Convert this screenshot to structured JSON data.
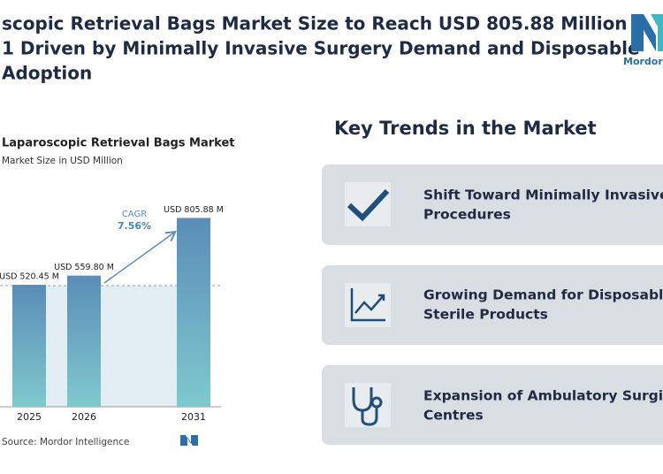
{
  "header": {
    "title_lines": [
      "scopic Retrieval Bags Market Size to Reach USD 805.88 Million",
      "1 Driven by Minimally Invasive Surgery Demand and Disposable",
      "Adoption"
    ],
    "logo": "Mordor In"
  },
  "chart_data": {
    "type": "bar",
    "title": "Laparoscopic Retrieval Bags Market",
    "subtitle": "Market Size in USD Million",
    "categories": [
      "2025",
      "2026",
      "2031"
    ],
    "values": [
      520.45,
      559.8,
      805.88
    ],
    "value_labels": [
      "USD 520.45 M",
      "USD 559.80 M",
      "USD 805.88 M"
    ],
    "annotations": [
      "CAGR",
      "7.56%"
    ],
    "source": "Source: Mordor Intelligence"
  },
  "key_trends": {
    "heading": "Key Trends in the Market",
    "items": [
      {
        "lines": [
          "Shift Toward Minimally Invasive",
          "Procedures"
        ]
      },
      {
        "lines": [
          "Growing Demand for Disposabl",
          "Sterile Products"
        ]
      },
      {
        "lines": [
          "Expansion of Ambulatory Surgic",
          "Centres"
        ]
      }
    ]
  }
}
